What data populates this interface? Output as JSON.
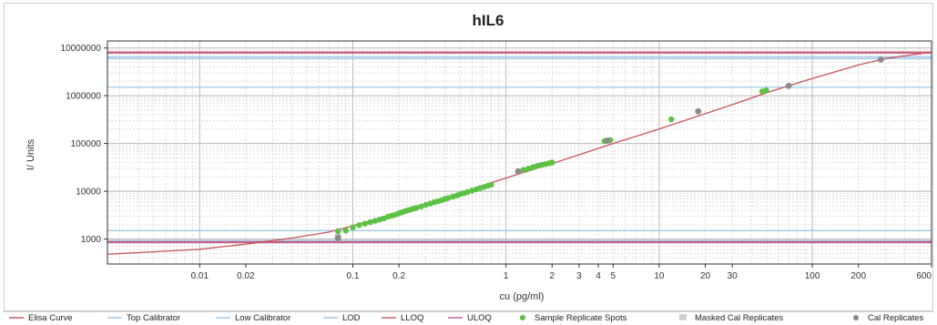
{
  "chart_data": {
    "type": "scatter",
    "title": "hIL6",
    "xlabel": "cu (pg/ml)",
    "ylabel": "I/ Units",
    "x_scale": "log",
    "y_scale": "log",
    "xlim": [
      0.0025,
      600
    ],
    "ylim": [
      300,
      14000000
    ],
    "x_ticks": [
      {
        "value": 0.01,
        "label": "0.01"
      },
      {
        "value": 0.02,
        "label": "0.02"
      },
      {
        "value": 0.1,
        "label": "0.1"
      },
      {
        "value": 0.2,
        "label": "0.2"
      },
      {
        "value": 1,
        "label": "1"
      },
      {
        "value": 2,
        "label": "2"
      },
      {
        "value": 3,
        "label": "3"
      },
      {
        "value": 4,
        "label": "4"
      },
      {
        "value": 5,
        "label": "5"
      },
      {
        "value": 10,
        "label": "10"
      },
      {
        "value": 20,
        "label": "20"
      },
      {
        "value": 30,
        "label": "30"
      },
      {
        "value": 100,
        "label": "100"
      },
      {
        "value": 200,
        "label": "200"
      },
      {
        "value": 600,
        "label": "600"
      }
    ],
    "y_ticks": [
      {
        "value": 1000,
        "label": "1000"
      },
      {
        "value": 10000,
        "label": "10000"
      },
      {
        "value": 100000,
        "label": "100000"
      },
      {
        "value": 1000000,
        "label": "1000000"
      },
      {
        "value": 10000000,
        "label": "10000000"
      }
    ],
    "grid": true,
    "legend_position": "bottom",
    "reference_lines": [
      {
        "name": "Top Calibrator",
        "y": 6000000,
        "color": "#9fc8ea"
      },
      {
        "name": "Top Calibrator",
        "y": 6500000,
        "color": "#9fc8ea"
      },
      {
        "name": "ULOQ",
        "y": 7800000,
        "color": "#c0609a"
      },
      {
        "name": "LLOQ",
        "y": 8200000,
        "color": "#d06070"
      },
      {
        "name": "Low Calibrator",
        "y": 1500000,
        "color": "#9fc8ea"
      },
      {
        "name": "Low Calibrator",
        "y": 1500,
        "color": "#9fc8ea"
      },
      {
        "name": "LOD",
        "y": 930,
        "color": "#9fc8ea"
      },
      {
        "name": "LLOQ",
        "y": 880,
        "color": "#d06070"
      },
      {
        "name": "ULOQ",
        "y": 840,
        "color": "#c0609a"
      }
    ],
    "curve": {
      "name": "Elisa Curve",
      "color": "#c8555a",
      "points": [
        [
          0.0025,
          480
        ],
        [
          0.005,
          540
        ],
        [
          0.01,
          610
        ],
        [
          0.02,
          780
        ],
        [
          0.04,
          1050
        ],
        [
          0.07,
          1400
        ],
        [
          0.1,
          1900
        ],
        [
          0.2,
          3600
        ],
        [
          0.3,
          5400
        ],
        [
          0.5,
          9000
        ],
        [
          0.8,
          15000
        ],
        [
          1,
          19000
        ],
        [
          2,
          38000
        ],
        [
          3,
          58000
        ],
        [
          5,
          100000
        ],
        [
          10,
          200000
        ],
        [
          20,
          420000
        ],
        [
          30,
          650000
        ],
        [
          50,
          1150000
        ],
        [
          100,
          2300000
        ],
        [
          200,
          4400000
        ],
        [
          300,
          6000000
        ],
        [
          600,
          8200000
        ]
      ]
    },
    "series": [
      {
        "name": "Sample Replicate Spots",
        "color": "#5cc243",
        "points": [
          [
            0.08,
            1450
          ],
          [
            0.09,
            1500
          ],
          [
            0.1,
            1750
          ],
          [
            0.11,
            1950
          ],
          [
            0.12,
            2100
          ],
          [
            0.13,
            2250
          ],
          [
            0.14,
            2400
          ],
          [
            0.15,
            2550
          ],
          [
            0.16,
            2700
          ],
          [
            0.17,
            2950
          ],
          [
            0.18,
            3100
          ],
          [
            0.19,
            3250
          ],
          [
            0.2,
            3450
          ],
          [
            0.21,
            3650
          ],
          [
            0.22,
            3850
          ],
          [
            0.23,
            4000
          ],
          [
            0.24,
            4150
          ],
          [
            0.25,
            4350
          ],
          [
            0.26,
            4500
          ],
          [
            0.28,
            4800
          ],
          [
            0.3,
            5200
          ],
          [
            0.32,
            5500
          ],
          [
            0.34,
            5900
          ],
          [
            0.36,
            6200
          ],
          [
            0.38,
            6500
          ],
          [
            0.4,
            6900
          ],
          [
            0.42,
            7200
          ],
          [
            0.45,
            7700
          ],
          [
            0.48,
            8200
          ],
          [
            0.5,
            8700
          ],
          [
            0.53,
            9100
          ],
          [
            0.56,
            9600
          ],
          [
            0.6,
            10300
          ],
          [
            0.64,
            11000
          ],
          [
            0.68,
            11700
          ],
          [
            0.72,
            12300
          ],
          [
            0.76,
            13000
          ],
          [
            0.8,
            13700
          ],
          [
            1.3,
            28000
          ],
          [
            1.4,
            30000
          ],
          [
            1.5,
            32000
          ],
          [
            1.6,
            34000
          ],
          [
            1.7,
            35500
          ],
          [
            1.8,
            37000
          ],
          [
            1.9,
            38500
          ],
          [
            2.0,
            40000
          ],
          [
            4.4,
            112000
          ],
          [
            4.8,
            118000
          ],
          [
            12,
            320000
          ],
          [
            47,
            1230000
          ],
          [
            50,
            1300000
          ]
        ]
      },
      {
        "name": "Masked Cal Replicates",
        "color": "#c8c8c8",
        "points": [
          [
            0.08,
            1100
          ],
          [
            0.08,
            1000
          ]
        ]
      },
      {
        "name": "Cal Replicates",
        "color": "#8a8a8a",
        "points": [
          [
            0.08,
            1050
          ],
          [
            1.2,
            26000
          ],
          [
            4.6,
            115000
          ],
          [
            18,
            470000
          ],
          [
            70,
            1600000
          ],
          [
            280,
            5700000
          ]
        ]
      }
    ],
    "legend": [
      {
        "label": "Elisa Curve",
        "kind": "line",
        "color": "#c8555a"
      },
      {
        "label": "Top Calibrator",
        "kind": "line",
        "color": "#9fc8ea"
      },
      {
        "label": "Low Calibrator",
        "kind": "line",
        "color": "#9fc8ea"
      },
      {
        "label": "LOD",
        "kind": "line",
        "color": "#9fc8ea"
      },
      {
        "label": "LLOQ",
        "kind": "line",
        "color": "#d06070"
      },
      {
        "label": "ULOQ",
        "kind": "line",
        "color": "#c0609a"
      },
      {
        "label": "Sample Replicate Spots",
        "kind": "dot",
        "color": "#5cc243"
      },
      {
        "label": "Masked Cal Replicates",
        "kind": "square",
        "color": "#d0d0d0"
      },
      {
        "label": "Cal Replicates",
        "kind": "dot",
        "color": "#8a8a8a"
      }
    ]
  }
}
